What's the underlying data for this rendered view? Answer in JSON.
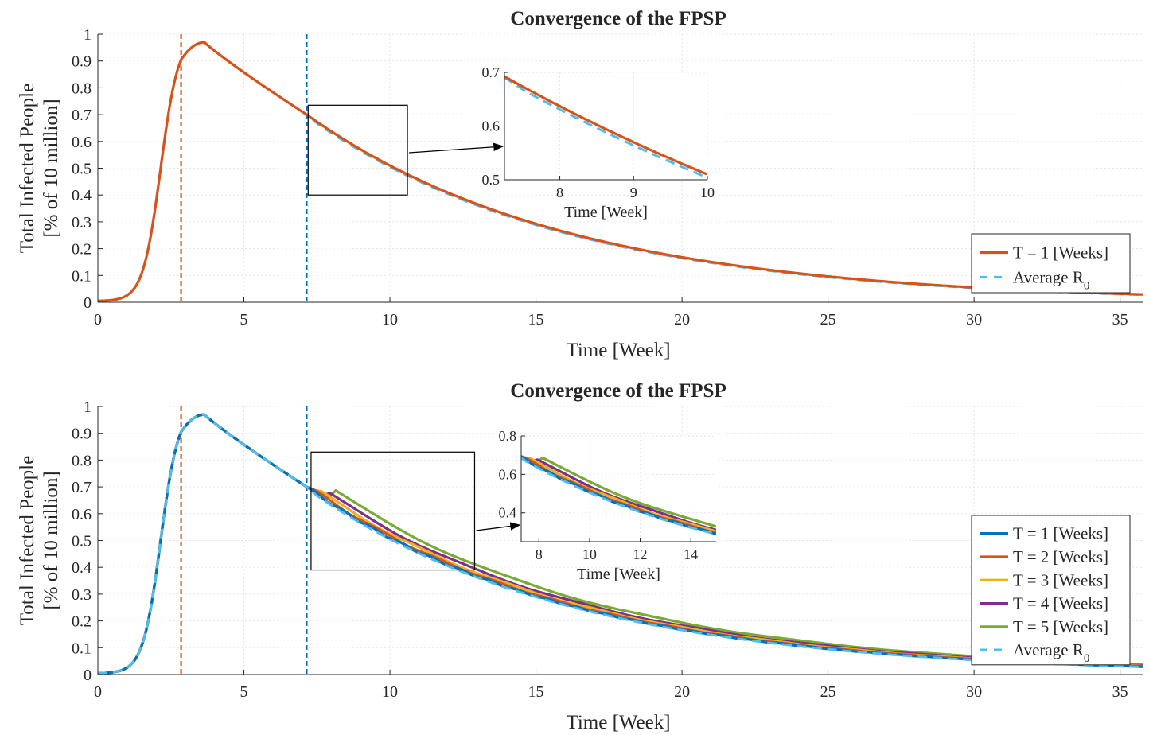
{
  "colors": {
    "t1_top": "#d95319",
    "t1": "#0072bd",
    "t2": "#d95319",
    "t3": "#edb120",
    "t4": "#7e2f8e",
    "t5": "#77ac30",
    "avg": "#4dbeee",
    "vline_orange": "#d95319",
    "vline_blue": "#0072bd",
    "grid": "#e6e6e6"
  },
  "chart_data": [
    {
      "type": "line",
      "title": "Convergence of the FPSP",
      "xlabel": "Time [Week]",
      "ylabel": [
        "Total Infected People",
        "[% of 10 million]"
      ],
      "xlim": [
        0,
        35.8
      ],
      "ylim": [
        0,
        1
      ],
      "xticks": [
        "0",
        "5",
        "10",
        "15",
        "20",
        "25",
        "30",
        "35"
      ],
      "yticks": [
        "0",
        "0.1",
        "0.2",
        "0.3",
        "0.4",
        "0.5",
        "0.6",
        "0.7",
        "0.8",
        "0.9",
        "1"
      ],
      "grid": true,
      "vertical_markers": [
        2.85,
        7.15
      ],
      "legend_position": "lower-right",
      "series": [
        {
          "name": "T = 1 [Weeks]",
          "style": "solid",
          "color": "#d95319",
          "offset": 0
        },
        {
          "name": "Average R0",
          "style": "dashed",
          "color": "#4dbeee",
          "offset": -0.006
        }
      ],
      "inset": {
        "xlabel": "Time [Week]",
        "xlim": [
          7.25,
          10
        ],
        "ylim": [
          0.5,
          0.7
        ],
        "xticks": [
          "8",
          "9",
          "10"
        ],
        "yticks": [
          "0.5",
          "0.6",
          "0.7"
        ],
        "zoom_box": {
          "x": [
            7.2,
            10.6
          ],
          "y": [
            0.4,
            0.735
          ]
        }
      }
    },
    {
      "type": "line",
      "title": "Convergence of the FPSP",
      "xlabel": "Time [Week]",
      "ylabel": [
        "Total Infected People",
        "[% of 10 million]"
      ],
      "xlim": [
        0,
        35.8
      ],
      "ylim": [
        0,
        1
      ],
      "xticks": [
        "0",
        "5",
        "10",
        "15",
        "20",
        "25",
        "30",
        "35"
      ],
      "yticks": [
        "0",
        "0.1",
        "0.2",
        "0.3",
        "0.4",
        "0.5",
        "0.6",
        "0.7",
        "0.8",
        "0.9",
        "1"
      ],
      "grid": true,
      "vertical_markers": [
        2.85,
        7.15
      ],
      "legend_position": "lower-right",
      "series": [
        {
          "name": "T = 1 [Weeks]",
          "style": "solid",
          "color": "#0072bd",
          "start": 7.15,
          "bump": 0,
          "period": 1
        },
        {
          "name": "T = 2 [Weeks]",
          "style": "solid",
          "color": "#d95319",
          "start": 7.15,
          "bump": 0.008,
          "period": 2
        },
        {
          "name": "T = 3 [Weeks]",
          "style": "solid",
          "color": "#edb120",
          "start": 7.3,
          "bump": 0.02,
          "period": 3
        },
        {
          "name": "T = 4 [Weeks]",
          "style": "solid",
          "color": "#7e2f8e",
          "start": 7.6,
          "bump": 0.035,
          "period": 4
        },
        {
          "name": "T = 5 [Weeks]",
          "style": "solid",
          "color": "#77ac30",
          "start": 7.8,
          "bump": 0.06,
          "period": 5
        },
        {
          "name": "Average R0",
          "style": "dashed",
          "color": "#4dbeee",
          "start": 7.15,
          "bump": -0.006,
          "period": 0
        }
      ],
      "inset": {
        "xlabel": "Time [Week]",
        "xlim": [
          7.3,
          15
        ],
        "ylim": [
          0.25,
          0.8
        ],
        "xticks": [
          "8",
          "10",
          "12",
          "14"
        ],
        "yticks": [
          "0.4",
          "0.6",
          "0.8"
        ],
        "zoom_box": {
          "x": [
            7.3,
            12.9
          ],
          "y": [
            0.39,
            0.83
          ]
        }
      }
    }
  ]
}
